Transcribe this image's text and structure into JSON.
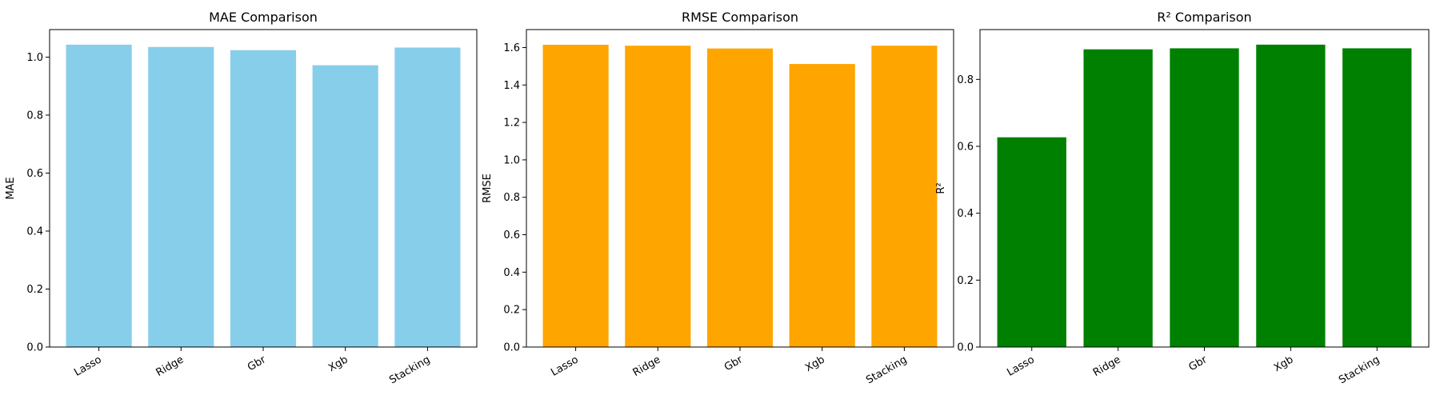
{
  "chart_data": [
    {
      "type": "bar",
      "title": "MAE Comparison",
      "xlabel": "",
      "ylabel": "MAE",
      "categories": [
        "Lasso",
        "Ridge",
        "Gbr",
        "Xgb",
        "Stacking"
      ],
      "values": [
        1.043,
        1.035,
        1.024,
        0.972,
        1.033
      ],
      "ylim": [
        0,
        1.095
      ],
      "yticks": [
        "0.0",
        "0.2",
        "0.4",
        "0.6",
        "0.8",
        "1.0"
      ],
      "color": "#87ceeb",
      "grid": false
    },
    {
      "type": "bar",
      "title": "RMSE Comparison",
      "xlabel": "",
      "ylabel": "RMSE",
      "categories": [
        "Lasso",
        "Ridge",
        "Gbr",
        "Xgb",
        "Stacking"
      ],
      "values": [
        1.615,
        1.61,
        1.595,
        1.512,
        1.61
      ],
      "ylim": [
        0,
        1.696
      ],
      "yticks": [
        "0.0",
        "0.2",
        "0.4",
        "0.6",
        "0.8",
        "1.0",
        "1.2",
        "1.4",
        "1.6"
      ],
      "color": "#ffa500",
      "grid": false
    },
    {
      "type": "bar",
      "title": "R² Comparison",
      "xlabel": "",
      "ylabel": "R²",
      "categories": [
        "Lasso",
        "Ridge",
        "Gbr",
        "Xgb",
        "Stacking"
      ],
      "values": [
        0.627,
        0.89,
        0.893,
        0.904,
        0.893
      ],
      "ylim": [
        0,
        0.949
      ],
      "yticks": [
        "0.0",
        "0.2",
        "0.4",
        "0.6",
        "0.8"
      ],
      "color": "#008000",
      "grid": false
    }
  ]
}
